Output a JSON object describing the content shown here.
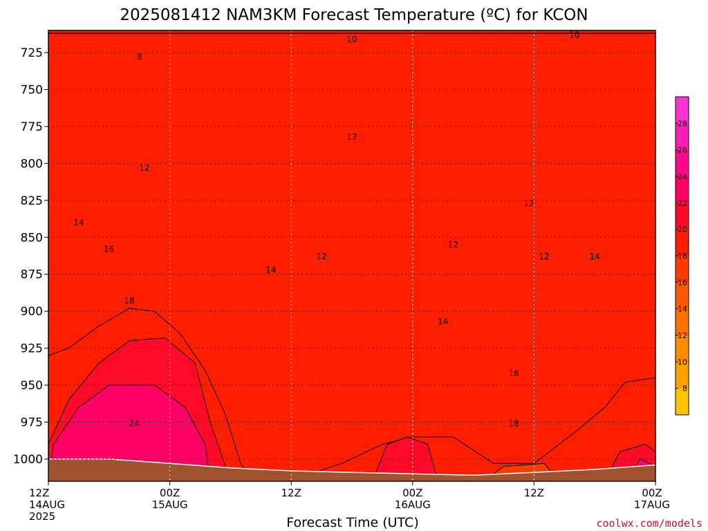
{
  "chart_data": {
    "type": "heatmap",
    "title": "2025081412 NAM3KM Forecast Temperature (ºC) for KCON",
    "xlabel": "Forecast Time (UTC)",
    "ylabel": "",
    "x_ticks": [
      {
        "hour": 0,
        "line1": "12Z",
        "line2": "14AUG",
        "line3": "2025"
      },
      {
        "hour": 12,
        "line1": "00Z",
        "line2": "15AUG",
        "line3": ""
      },
      {
        "hour": 24,
        "line1": "12Z",
        "line2": "",
        "line3": ""
      },
      {
        "hour": 36,
        "line1": "00Z",
        "line2": "16AUG",
        "line3": ""
      },
      {
        "hour": 48,
        "line1": "12Z",
        "line2": "",
        "line3": ""
      },
      {
        "hour": 60,
        "line1": "00Z",
        "line2": "17AUG",
        "line3": ""
      }
    ],
    "xlim": [
      0,
      60
    ],
    "y_ticks": [
      725,
      750,
      775,
      800,
      825,
      850,
      875,
      900,
      925,
      950,
      975,
      1000
    ],
    "ylim": [
      1015,
      710
    ],
    "grid": true,
    "colorbar": {
      "ticks": [
        8,
        10,
        12,
        14,
        16,
        18,
        20,
        22,
        24,
        26,
        28
      ],
      "bounds": [
        6,
        30
      ],
      "colors": [
        "#ffc400",
        "#ffa200",
        "#ff8c00",
        "#ff7200",
        "#ff5a00",
        "#ff3c00",
        "#ff1e00",
        "#ff0a28",
        "#ff0064",
        "#ff0a8c",
        "#ff1eb4",
        "#ff32d2"
      ]
    },
    "contour_labels": [
      {
        "text": "8",
        "hour": 9.0,
        "pressure": 728
      },
      {
        "text": "10",
        "hour": 30.0,
        "pressure": 716
      },
      {
        "text": "10",
        "hour": 52.0,
        "pressure": 713
      },
      {
        "text": "12",
        "hour": 9.5,
        "pressure": 803
      },
      {
        "text": "12",
        "hour": 30.0,
        "pressure": 782
      },
      {
        "text": "12",
        "hour": 27.0,
        "pressure": 863
      },
      {
        "text": "12",
        "hour": 40.0,
        "pressure": 855
      },
      {
        "text": "12",
        "hour": 47.5,
        "pressure": 827
      },
      {
        "text": "12",
        "hour": 49.0,
        "pressure": 863
      },
      {
        "text": "14",
        "hour": 3.0,
        "pressure": 840
      },
      {
        "text": "14",
        "hour": 22.0,
        "pressure": 872
      },
      {
        "text": "14",
        "hour": 39.0,
        "pressure": 907
      },
      {
        "text": "14",
        "hour": 54.0,
        "pressure": 863
      },
      {
        "text": "16",
        "hour": 6.0,
        "pressure": 858
      },
      {
        "text": "16",
        "hour": 46.0,
        "pressure": 942
      },
      {
        "text": "18",
        "hour": 8.0,
        "pressure": 893
      },
      {
        "text": "18",
        "hour": 46.0,
        "pressure": 976
      },
      {
        "text": "24",
        "hour": 8.5,
        "pressure": 976
      }
    ],
    "bands": [
      {
        "value": 8,
        "color": "#ffc400",
        "pts": [
          [
            0,
            712
          ],
          [
            15.7,
            712
          ],
          [
            15.3,
            733
          ],
          [
            14.5,
            724
          ],
          [
            13.0,
            722
          ],
          [
            11.2,
            725
          ],
          [
            8.0,
            731
          ],
          [
            5.0,
            729
          ],
          [
            2.0,
            727
          ],
          [
            0,
            724
          ]
        ]
      },
      {
        "value": 10,
        "color": "#ffa200",
        "pts": [
          [
            0,
            712
          ],
          [
            60,
            712
          ],
          [
            60,
            745
          ],
          [
            59.0,
            752
          ],
          [
            57.5,
            735
          ],
          [
            56.0,
            728
          ],
          [
            53.0,
            724
          ],
          [
            50.0,
            722
          ],
          [
            48.0,
            724
          ],
          [
            45.0,
            722
          ],
          [
            42.0,
            721
          ],
          [
            38.0,
            721
          ],
          [
            32.0,
            722
          ],
          [
            28.0,
            718
          ],
          [
            24.0,
            716
          ],
          [
            21.5,
            725
          ],
          [
            20.5,
            750
          ],
          [
            19.5,
            776
          ],
          [
            18.5,
            784
          ],
          [
            17.5,
            790
          ],
          [
            16.5,
            776
          ],
          [
            15.5,
            786
          ],
          [
            13.0,
            785
          ],
          [
            11.0,
            780
          ],
          [
            9.5,
            767
          ],
          [
            6.0,
            744
          ],
          [
            3.0,
            743
          ],
          [
            0,
            746
          ]
        ]
      },
      {
        "value": 12,
        "color": "#ff8c00",
        "pts": [
          [
            0,
            712
          ],
          [
            60,
            712
          ],
          [
            60,
            800
          ],
          [
            59.0,
            805
          ],
          [
            58.0,
            780
          ],
          [
            57.0,
            760
          ],
          [
            56.0,
            760
          ],
          [
            55.0,
            780
          ],
          [
            54.0,
            800
          ],
          [
            53.5,
            770
          ],
          [
            52.5,
            757
          ],
          [
            51.5,
            790
          ],
          [
            50.0,
            780
          ],
          [
            49.5,
            755
          ],
          [
            47.5,
            753
          ],
          [
            45.0,
            760
          ],
          [
            44.0,
            775
          ],
          [
            42.0,
            790
          ],
          [
            41.0,
            865
          ],
          [
            42.5,
            885
          ],
          [
            46.0,
            888
          ],
          [
            48.0,
            875
          ],
          [
            49.5,
            860
          ],
          [
            51.5,
            845
          ],
          [
            52.5,
            818
          ],
          [
            52.5,
            790
          ],
          [
            51.5,
            760
          ],
          [
            49.5,
            755
          ],
          [
            47.5,
            753
          ],
          [
            45.0,
            760
          ],
          [
            44.0,
            775
          ],
          [
            43.0,
            790
          ],
          [
            42.0,
            790
          ],
          [
            40.0,
            770
          ],
          [
            38.0,
            758
          ],
          [
            35.0,
            760
          ],
          [
            33.0,
            768
          ],
          [
            30.5,
            772
          ],
          [
            29.0,
            785
          ],
          [
            29.2,
            800
          ],
          [
            28.0,
            830
          ],
          [
            27.0,
            855
          ],
          [
            25.0,
            865
          ],
          [
            23.0,
            845
          ],
          [
            21.0,
            830
          ],
          [
            19.5,
            848
          ],
          [
            17.5,
            838
          ],
          [
            15.5,
            826
          ],
          [
            13.5,
            810
          ],
          [
            11.0,
            786
          ],
          [
            6.0,
            778
          ],
          [
            3.0,
            780
          ],
          [
            1.0,
            788
          ],
          [
            0,
            785
          ]
        ]
      },
      {
        "value": 14,
        "color": "#ff7200",
        "pts": [
          [
            0,
            712
          ],
          [
            60,
            712
          ],
          [
            60,
            848
          ],
          [
            58.0,
            852
          ],
          [
            56.0,
            865
          ],
          [
            55.0,
            885
          ],
          [
            54.0,
            900
          ],
          [
            52.0,
            902
          ],
          [
            49.0,
            902
          ],
          [
            45.0,
            898
          ],
          [
            41.0,
            893
          ],
          [
            38.0,
            880
          ],
          [
            36.0,
            866
          ],
          [
            34.0,
            875
          ],
          [
            31.5,
            890
          ],
          [
            30.0,
            920
          ],
          [
            26.0,
            935
          ],
          [
            25.5,
            928
          ],
          [
            24.0,
            895
          ],
          [
            22.0,
            873
          ],
          [
            20.5,
            880
          ],
          [
            18.5,
            860
          ],
          [
            17.5,
            852
          ],
          [
            15.0,
            846
          ],
          [
            12.0,
            832
          ],
          [
            9.0,
            824
          ],
          [
            6.5,
            822
          ],
          [
            4.0,
            840
          ],
          [
            1.5,
            835
          ],
          [
            0,
            822
          ]
        ]
      },
      {
        "value": 16,
        "color": "#ff5a00",
        "pts": [
          [
            0,
            712
          ],
          [
            60,
            712
          ],
          [
            60,
            895
          ],
          [
            57.0,
            900
          ],
          [
            56.0,
            915
          ],
          [
            53.0,
            922
          ],
          [
            50.0,
            938
          ],
          [
            48.0,
            946
          ],
          [
            46.0,
            941
          ],
          [
            43.0,
            925
          ],
          [
            40.0,
            915
          ],
          [
            36.0,
            918
          ],
          [
            34.0,
            930
          ],
          [
            31.0,
            948
          ],
          [
            29.0,
            950
          ],
          [
            27.0,
            956
          ],
          [
            25.0,
            930
          ],
          [
            23.0,
            915
          ],
          [
            21.0,
            895
          ],
          [
            19.0,
            880
          ],
          [
            16.0,
            875
          ],
          [
            13.0,
            868
          ],
          [
            11.0,
            865
          ],
          [
            8.5,
            864
          ],
          [
            5.5,
            868
          ],
          [
            3.0,
            862
          ],
          [
            0,
            860
          ]
        ]
      },
      {
        "value": 18,
        "color": "#ff3c00",
        "pts": [
          [
            0,
            712
          ],
          [
            60,
            712
          ],
          [
            60,
            923
          ],
          [
            57.0,
            935
          ],
          [
            55.0,
            950
          ],
          [
            52.0,
            965
          ],
          [
            49.0,
            978
          ],
          [
            46.0,
            978
          ],
          [
            43.0,
            968
          ],
          [
            40.0,
            964
          ],
          [
            37.0,
            962
          ],
          [
            34.0,
            970
          ],
          [
            31.0,
            978
          ],
          [
            28.0,
            985
          ],
          [
            26.0,
            990
          ],
          [
            24.0,
            1004
          ],
          [
            22.5,
            1004
          ],
          [
            21.0,
            1000
          ],
          [
            19.5,
            985
          ],
          [
            17.5,
            948
          ],
          [
            15.5,
            925
          ],
          [
            13.5,
            905
          ],
          [
            11.5,
            888
          ],
          [
            8.5,
            880
          ],
          [
            5.5,
            890
          ],
          [
            2.5,
            900
          ],
          [
            0,
            895
          ]
        ]
      },
      {
        "value": 20,
        "color": "#ff1e00",
        "pts": [
          [
            0,
            712
          ],
          [
            60,
            712
          ],
          [
            60,
            945
          ],
          [
            57.0,
            948
          ],
          [
            55.0,
            965
          ],
          [
            52.0,
            982
          ],
          [
            48.0,
            1003
          ],
          [
            44.0,
            1003
          ],
          [
            40.0,
            985
          ],
          [
            36.0,
            985
          ],
          [
            33.0,
            990
          ],
          [
            29.0,
            1003
          ],
          [
            25.0,
            1012
          ],
          [
            20.0,
            1012
          ],
          [
            19.0,
            1003
          ],
          [
            17.5,
            970
          ],
          [
            15.5,
            940
          ],
          [
            13.0,
            915
          ],
          [
            10.5,
            900
          ],
          [
            8.0,
            898
          ],
          [
            5.0,
            910
          ],
          [
            2.0,
            925
          ],
          [
            0,
            930
          ]
        ]
      },
      {
        "value": 22,
        "color": "#ff0a28",
        "pts": [
          [
            0,
            1015
          ],
          [
            0,
            990
          ],
          [
            2.0,
            960
          ],
          [
            5.0,
            935
          ],
          [
            8.0,
            920
          ],
          [
            11.5,
            918
          ],
          [
            14.5,
            935
          ],
          [
            16.0,
            975
          ],
          [
            17.5,
            1005
          ],
          [
            18.0,
            1015
          ]
        ]
      },
      {
        "value": 24,
        "color": "#ff0064",
        "pts": [
          [
            0,
            1015
          ],
          [
            0.5,
            990
          ],
          [
            3.0,
            965
          ],
          [
            6.0,
            950
          ],
          [
            10.5,
            950
          ],
          [
            13.5,
            965
          ],
          [
            15.5,
            990
          ],
          [
            16.0,
            1015
          ]
        ]
      },
      {
        "value": 22,
        "color": "#ff0a28",
        "pts": [
          [
            32,
            1015
          ],
          [
            33.5,
            990
          ],
          [
            35.5,
            985
          ],
          [
            37.5,
            990
          ],
          [
            38.5,
            1015
          ]
        ]
      },
      {
        "value": 22,
        "color": "#ff0a28",
        "pts": [
          [
            55,
            1015
          ],
          [
            56.5,
            995
          ],
          [
            59.0,
            990
          ],
          [
            60,
            995
          ],
          [
            60,
            1015
          ]
        ]
      },
      {
        "value": 24,
        "color": "#ff0064",
        "pts": [
          [
            57,
            1015
          ],
          [
            58.5,
            1000
          ],
          [
            60,
            1005
          ],
          [
            60,
            1015
          ]
        ]
      },
      {
        "value": 18,
        "color": "#ff3c00",
        "pts": [
          [
            43,
            1015
          ],
          [
            45.0,
            1005
          ],
          [
            49.0,
            1003
          ],
          [
            50.5,
            1015
          ]
        ]
      }
    ],
    "ground_color": "#a0522d",
    "ground_top": [
      [
        0,
        1000
      ],
      [
        6,
        1000
      ],
      [
        12,
        1003
      ],
      [
        18,
        1006
      ],
      [
        24,
        1008
      ],
      [
        30,
        1009
      ],
      [
        36,
        1010
      ],
      [
        42,
        1011
      ],
      [
        48,
        1009
      ],
      [
        54,
        1007
      ],
      [
        60,
        1004
      ]
    ]
  },
  "credit": "coolwx.com/models"
}
